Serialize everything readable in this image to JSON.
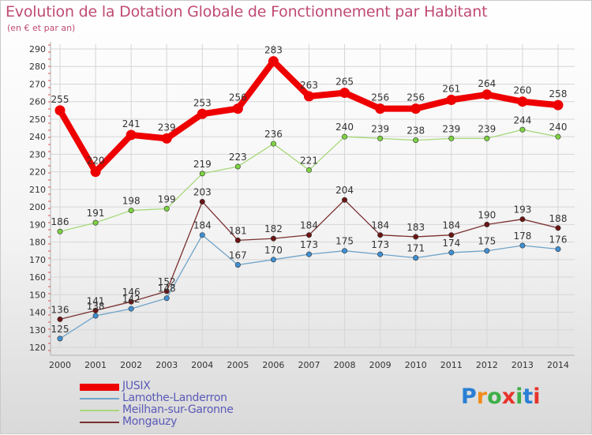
{
  "header": {
    "title": "Evolution de la Dotation Globale de Fonctionnement par Habitant",
    "subtitle": "(en € et par an)"
  },
  "logo": {
    "text": "Proxiti",
    "colors": [
      "#2a7fd4",
      "#f08c1c",
      "#3fae49",
      "#e8332a",
      "#3fae49",
      "#2a7fd4",
      "#e8332a"
    ]
  },
  "chart_data": {
    "type": "line",
    "title": "Evolution de la Dotation Globale de Fonctionnement par Habitant",
    "subtitle": "(en € et par an)",
    "x": [
      "2000",
      "2001",
      "2002",
      "2003",
      "2004",
      "2005",
      "2006",
      "2007",
      "2008",
      "2009",
      "2010",
      "2011",
      "2012",
      "2013",
      "2014"
    ],
    "ylim": [
      120,
      290
    ],
    "yticks": [
      120,
      130,
      140,
      150,
      160,
      170,
      180,
      190,
      200,
      210,
      220,
      230,
      240,
      250,
      260,
      270,
      280,
      290
    ],
    "grid": true,
    "legend_position": "bottom-left",
    "series": [
      {
        "name": "JUSIX",
        "color": "#ee0000",
        "marker_color": "#ee0000",
        "values": [
          255,
          220,
          241,
          239,
          253,
          256,
          283,
          263,
          265,
          256,
          256,
          261,
          264,
          260,
          258
        ]
      },
      {
        "name": "Lamothe-Landerron",
        "color": "#6fa3c8",
        "marker_color": "#3f8fd2",
        "values": [
          125,
          138,
          142,
          148,
          184,
          167,
          170,
          173,
          175,
          173,
          171,
          174,
          175,
          178,
          176
        ]
      },
      {
        "name": "Meilhan-sur-Garonne",
        "color": "#a6d87a",
        "marker_color": "#7dd341",
        "values": [
          186,
          191,
          198,
          199,
          219,
          223,
          236,
          221,
          240,
          239,
          238,
          239,
          239,
          244,
          240
        ]
      },
      {
        "name": "Mongauzy",
        "color": "#7a3030",
        "marker_color": "#6b1515",
        "values": [
          136,
          141,
          146,
          152,
          203,
          181,
          182,
          184,
          204,
          184,
          183,
          184,
          190,
          193,
          188
        ]
      }
    ]
  }
}
